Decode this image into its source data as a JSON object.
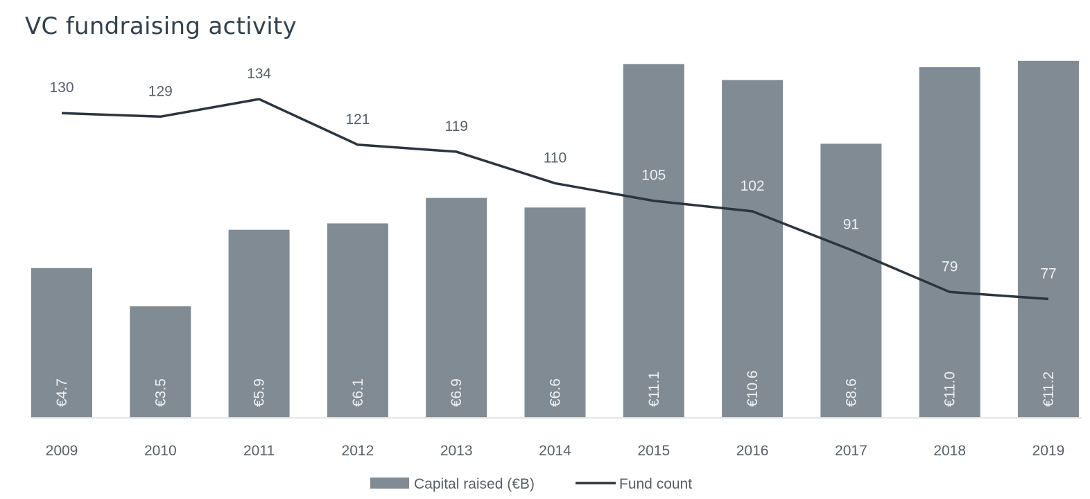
{
  "chart_data": {
    "type": "bar",
    "title": "VC fundraising activity",
    "categories": [
      "2009",
      "2010",
      "2011",
      "2012",
      "2013",
      "2014",
      "2015",
      "2016",
      "2017",
      "2018",
      "2019"
    ],
    "series": [
      {
        "name": "Capital raised (€B)",
        "type": "bar",
        "values": [
          4.7,
          3.5,
          5.9,
          6.1,
          6.9,
          6.6,
          11.1,
          10.6,
          8.6,
          11.0,
          11.2
        ],
        "labels": [
          "€4.7",
          "€3.5",
          "€5.9",
          "€6.1",
          "€6.9",
          "€6.6",
          "€11.1",
          "€10.6",
          "€8.6",
          "€11.0",
          "€11.2"
        ],
        "color": "#818b93"
      },
      {
        "name": "Fund count",
        "type": "line",
        "values": [
          130,
          129,
          134,
          121,
          119,
          110,
          105,
          102,
          91,
          79,
          77
        ],
        "color": "#2b3540"
      }
    ],
    "legend": "bottom-center",
    "grid": false
  }
}
